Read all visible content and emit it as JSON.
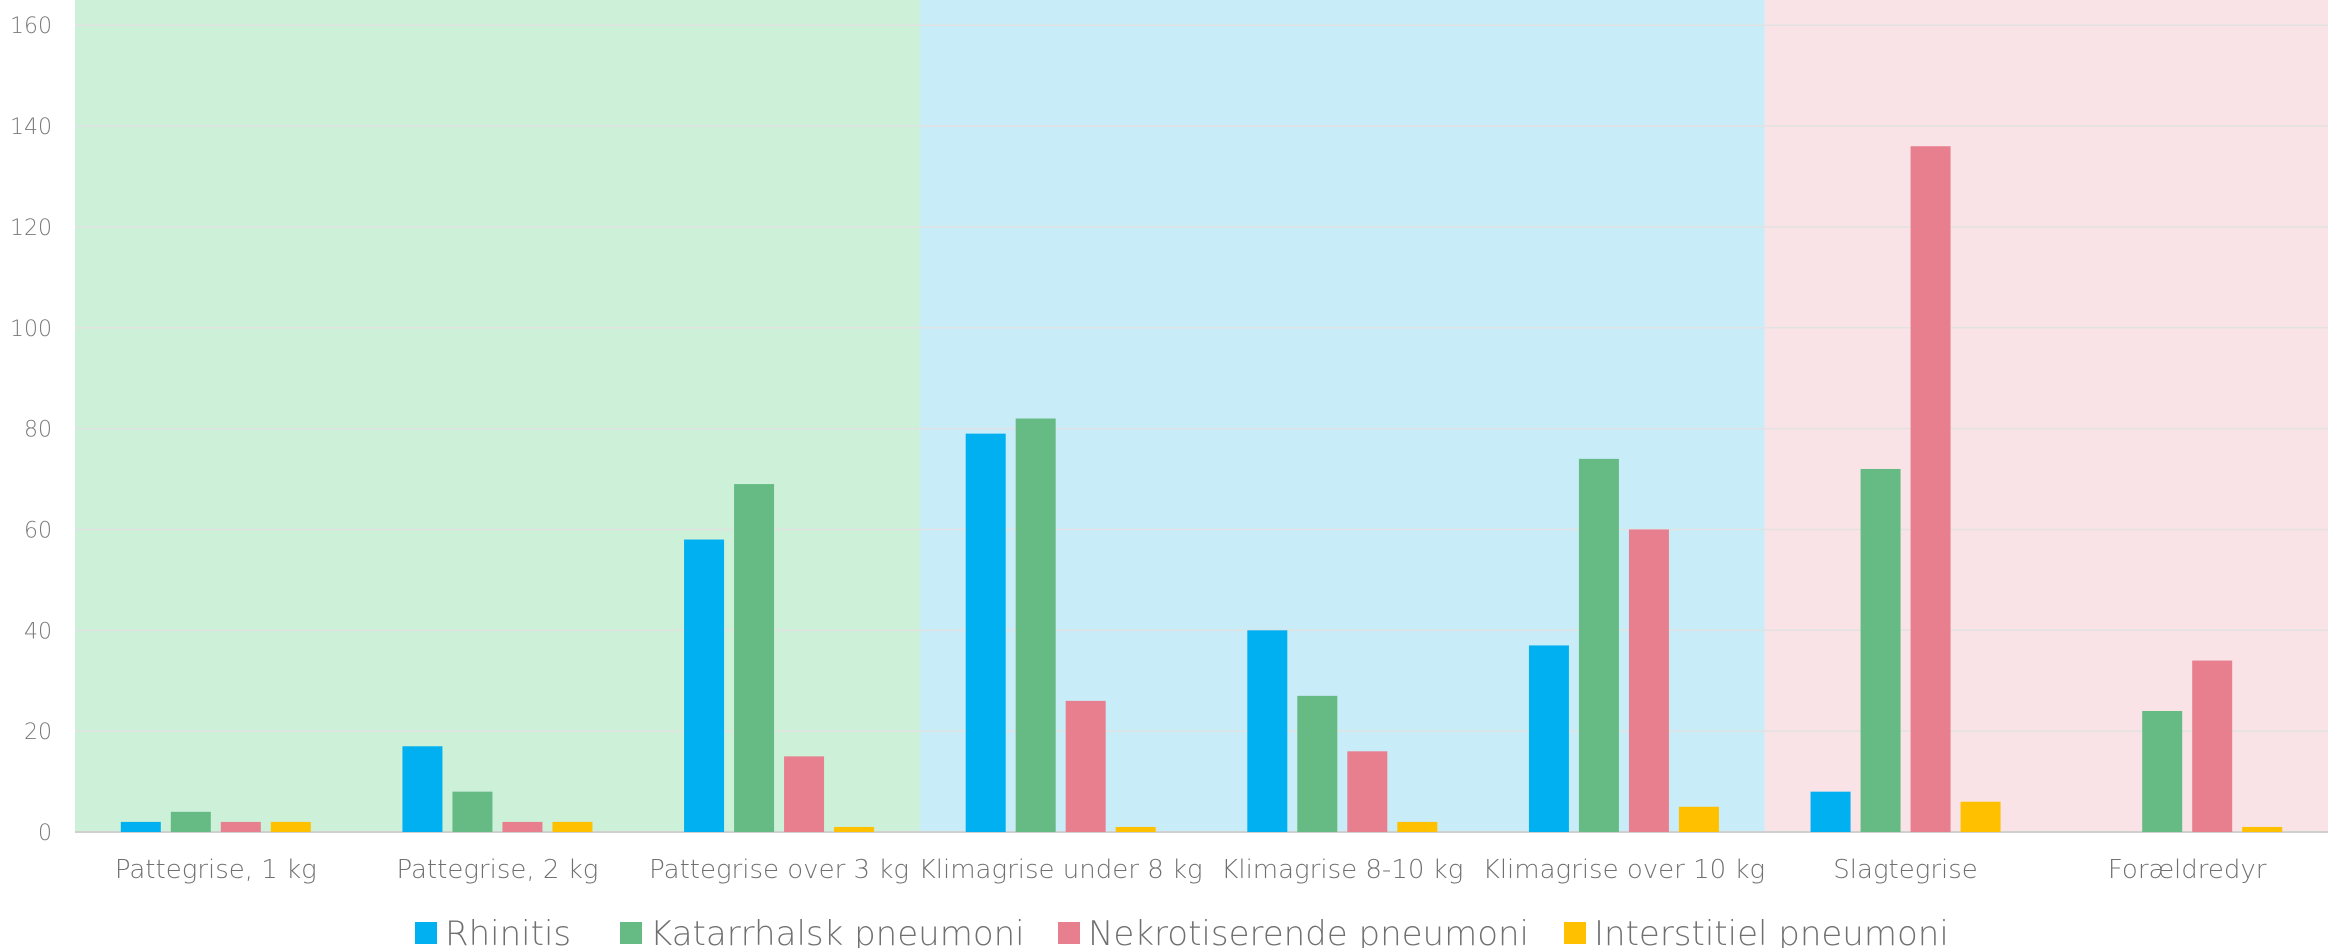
{
  "chart_data": {
    "type": "bar",
    "title": "",
    "xlabel": "",
    "ylabel": "",
    "ylim": [
      0,
      165
    ],
    "yticks": [
      0,
      20,
      40,
      60,
      80,
      100,
      120,
      140,
      160
    ],
    "grid": true,
    "legend_position": "bottom",
    "categories": [
      "Pattegrise, 1 kg",
      "Pattegrise, 2 kg",
      "Pattegrise over 3 kg",
      "Klimagrise under 8 kg",
      "Klimagrise 8-10 kg",
      "Klimagrise over 10 kg",
      "Slagtegrise",
      "Forældredyr"
    ],
    "series": [
      {
        "name": "Rhinitis",
        "color": "#00b0f0",
        "values": [
          2,
          17,
          58,
          79,
          40,
          37,
          8,
          0
        ]
      },
      {
        "name": "Katarrhalsk pneumoni",
        "color": "#66bb84",
        "values": [
          4,
          8,
          69,
          82,
          27,
          74,
          72,
          24
        ]
      },
      {
        "name": "Nekrotiserende pneumoni",
        "color": "#e87f8f",
        "values": [
          2,
          2,
          15,
          26,
          16,
          60,
          136,
          34
        ]
      },
      {
        "name": "Interstitiel pneumoni",
        "color": "#ffc000",
        "values": [
          2,
          2,
          1,
          1,
          2,
          5,
          6,
          1
        ]
      }
    ],
    "background_bands": [
      {
        "from_category": 0,
        "to_category": 2,
        "color": "#ccf0d8"
      },
      {
        "from_category": 3,
        "to_category": 5,
        "color": "#c8ecf8"
      },
      {
        "from_category": 6,
        "to_category": 7,
        "color": "#fae3e6"
      }
    ]
  }
}
